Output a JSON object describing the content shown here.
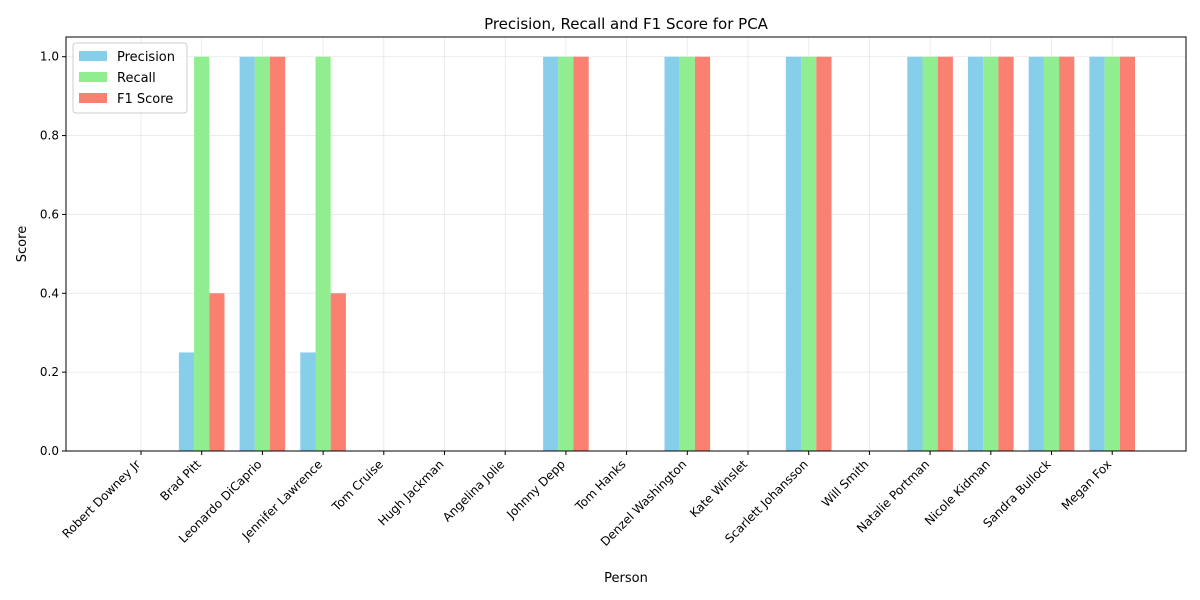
{
  "chart_data": {
    "type": "bar",
    "title": "Precision, Recall and F1 Score for PCA",
    "xlabel": "Person",
    "ylabel": "Score",
    "ylim": [
      0,
      1.05
    ],
    "yticks": [
      "0.0",
      "0.2",
      "0.4",
      "0.6",
      "0.8",
      "1.0"
    ],
    "grid": true,
    "legend_position": "top-left",
    "categories": [
      "Robert Downey Jr",
      "Brad Pitt",
      "Leonardo DiCaprio",
      "Jennifer Lawrence",
      "Tom Cruise",
      "Hugh Jackman",
      "Angelina Jolie",
      "Johnny Depp",
      "Tom Hanks",
      "Denzel Washington",
      "Kate Winslet",
      "Scarlett Johansson",
      "Will Smith",
      "Natalie Portman",
      "Nicole Kidman",
      "Sandra Bullock",
      "Megan Fox"
    ],
    "series": [
      {
        "name": "Precision",
        "color": "#87ceeb",
        "values": [
          0,
          0.25,
          1,
          0.25,
          0,
          0,
          0,
          1,
          0,
          1,
          0,
          1,
          0,
          1,
          1,
          1,
          1
        ]
      },
      {
        "name": "Recall",
        "color": "#90ee90",
        "values": [
          0,
          1,
          1,
          1,
          0,
          0,
          0,
          1,
          0,
          1,
          0,
          1,
          0,
          1,
          1,
          1,
          1
        ]
      },
      {
        "name": "F1 Score",
        "color": "#fa8072",
        "values": [
          0,
          0.4,
          1,
          0.4,
          0,
          0,
          0,
          1,
          0,
          1,
          0,
          1,
          0,
          1,
          1,
          1,
          1
        ]
      }
    ]
  }
}
